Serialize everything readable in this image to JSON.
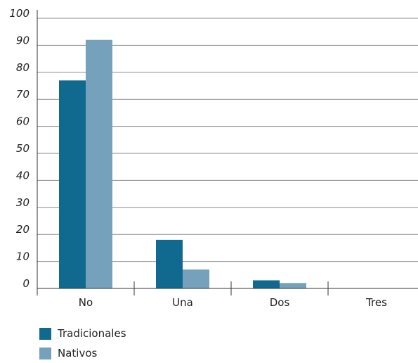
{
  "chart_data": {
    "type": "bar",
    "categories": [
      "No",
      "Una",
      "Dos",
      "Tres"
    ],
    "series": [
      {
        "name": "Tradicionales",
        "values": [
          77,
          18,
          3,
          0
        ],
        "color": "#106a8f"
      },
      {
        "name": "Nativos",
        "values": [
          92,
          7,
          2,
          0
        ],
        "color": "#75a1bd"
      }
    ],
    "yticks": [
      "0",
      "10",
      "20",
      "30",
      "40",
      "50",
      "60",
      "70",
      "80",
      "90",
      "100"
    ],
    "ylim": [
      0,
      100
    ],
    "grid": true,
    "legend_position": "bottom-left"
  }
}
